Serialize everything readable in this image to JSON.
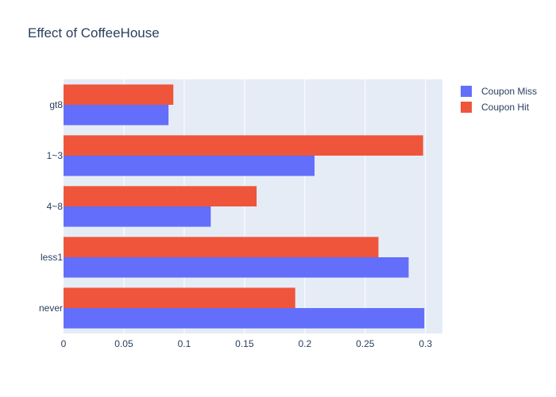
{
  "chart_data": {
    "type": "bar",
    "orientation": "horizontal",
    "title": "Effect of CoffeeHouse",
    "categories": [
      "gt8",
      "1~3",
      "4~8",
      "less1",
      "never"
    ],
    "series": [
      {
        "name": "Coupon Miss",
        "color": "#636efa",
        "values": [
          0.087,
          0.208,
          0.122,
          0.286,
          0.299
        ]
      },
      {
        "name": "Coupon Hit",
        "color": "#ef553b",
        "values": [
          0.091,
          0.298,
          0.16,
          0.261,
          0.192
        ]
      }
    ],
    "xlim": [
      0,
      0.314
    ],
    "xticks": [
      0,
      0.05,
      0.1,
      0.15,
      0.2,
      0.25,
      0.3
    ],
    "xtick_labels": [
      "0",
      "0.05",
      "0.1",
      "0.15",
      "0.2",
      "0.25",
      "0.3"
    ],
    "xlabel": "",
    "ylabel": "",
    "grid": true,
    "legend_position": "top-right",
    "plot_background": "#e5ecf6"
  }
}
